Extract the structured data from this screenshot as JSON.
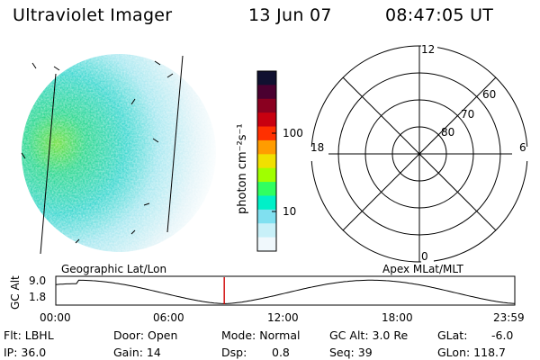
{
  "header": {
    "title": "Ultraviolet Imager",
    "date": "13 Jun 07",
    "time": "08:47:05 UT"
  },
  "colorbar": {
    "unit_label": "photon cm⁻²s⁻¹",
    "ticks": [
      "100",
      "10"
    ],
    "colors": [
      "#101030",
      "#4a0030",
      "#8a0020",
      "#c80010",
      "#ff3000",
      "#ff9c00",
      "#f0e000",
      "#a0ff00",
      "#30ff60",
      "#00f0c8",
      "#80e0f0",
      "#c8f0f8",
      "#f0f8fc"
    ]
  },
  "polar": {
    "top_label": "12",
    "bottom_label": "0",
    "left_label": "18",
    "right_label": "6",
    "lat_60": "60",
    "lat_70": "70",
    "lat_80": "80"
  },
  "timeline": {
    "ylabel": "GC Alt",
    "y_top": "9.0",
    "y_bottom": "1.8",
    "left_caption": "Geographic Lat/Lon",
    "right_caption": "Apex MLat/MLT",
    "xticks": [
      "00:00",
      "06:00",
      "12:00",
      "18:00",
      "23:59"
    ],
    "marker_color": "#d00000",
    "current_time_fraction": 0.367
  },
  "info": {
    "flt": "Flt: LBHL",
    "ip": "IP: 36.0",
    "door": "Door: Open",
    "gain": "Gain: 14",
    "mode": "Mode: Normal",
    "dsp_label": "Dsp:",
    "dsp_value": "0.8",
    "gcalt": "GC Alt: 3.0 Re",
    "seq": "Seq: 39",
    "glat_label": "GLat:",
    "glat_value": "-6.0",
    "glon": "GLon: 118.7"
  }
}
